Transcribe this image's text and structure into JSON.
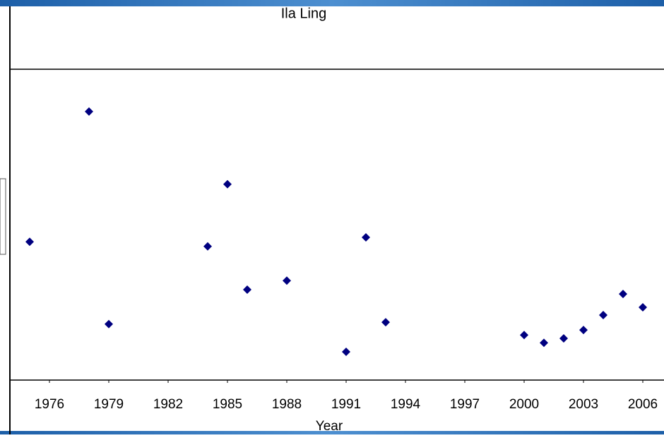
{
  "chart_data": {
    "type": "scatter",
    "title": "Ila Ling",
    "x_label": "Year",
    "color": "#000080",
    "x": [
      1975,
      1978,
      1979,
      1984,
      1985,
      1986,
      1988,
      1991,
      1992,
      1993,
      2000,
      2001,
      2002,
      2003,
      2004,
      2005,
      2006
    ],
    "values": [
      44.5,
      86.4,
      18.0,
      43.0,
      63.0,
      29.1,
      32.0,
      9.1,
      45.9,
      18.6,
      14.5,
      12.0,
      13.4,
      16.1,
      20.9,
      27.7,
      23.4
    ],
    "xlim": [
      1974,
      2007
    ],
    "ylim": [
      0,
      100
    ],
    "xticks": [
      1976,
      1979,
      1982,
      1985,
      1988,
      1991,
      1994,
      1997,
      2000,
      2003,
      2006
    ]
  }
}
